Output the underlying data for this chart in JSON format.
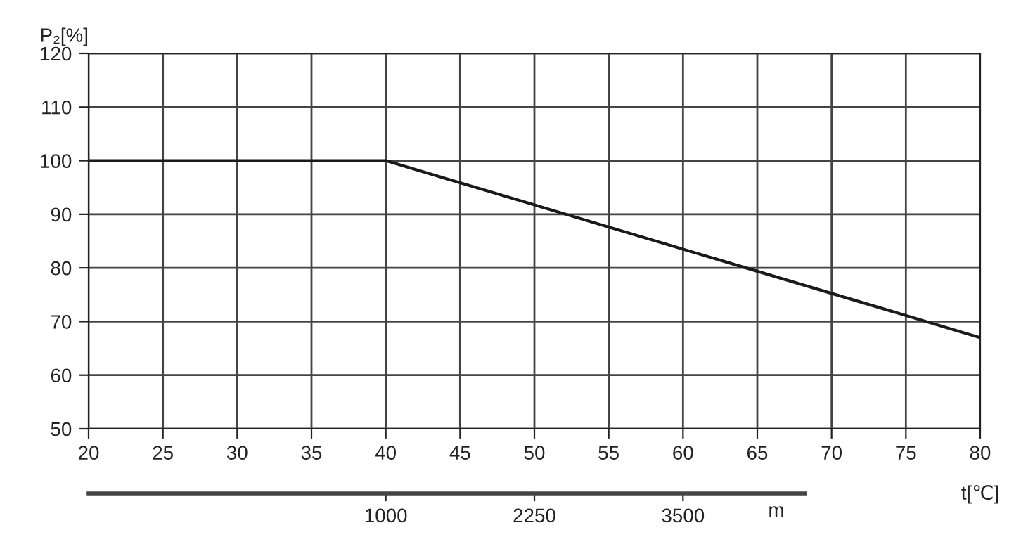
{
  "chart_data": {
    "type": "line",
    "ylabel": "P₂[%]",
    "xlabel": "t[℃]",
    "x2label": "m",
    "x": [
      20,
      40,
      80
    ],
    "series": [
      {
        "color": "#1a1a1a",
        "values": [
          100,
          100,
          67
        ]
      }
    ],
    "xlim": [
      20,
      80
    ],
    "xticks": [
      20,
      25,
      30,
      35,
      40,
      45,
      50,
      55,
      60,
      65,
      70,
      75,
      80
    ],
    "ylim": [
      50,
      120
    ],
    "yticks": [
      50,
      60,
      70,
      80,
      90,
      100,
      110,
      120
    ],
    "x2lim": [
      -1500,
      4525
    ],
    "x2ticks": [
      1000,
      2250,
      3500
    ],
    "grid": true,
    "marker": "none",
    "line_style": "solid"
  }
}
